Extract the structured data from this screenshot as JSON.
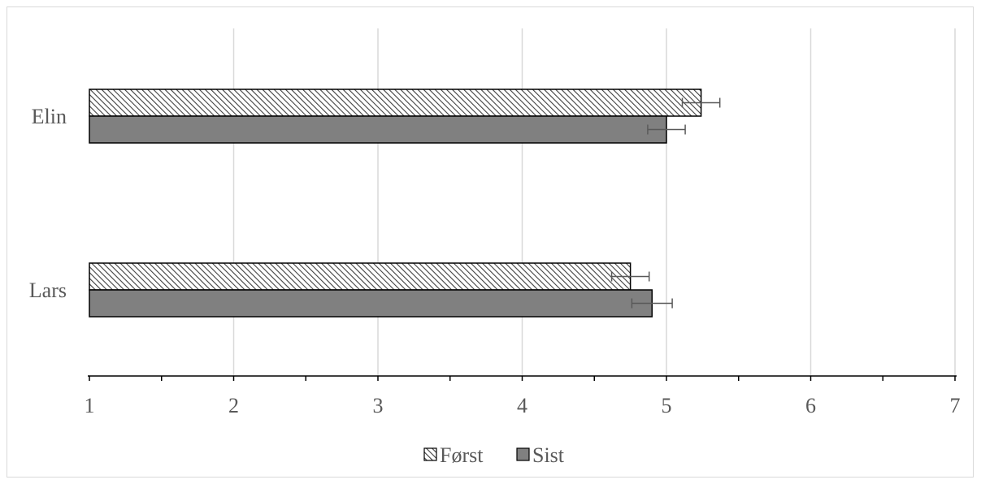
{
  "chart_data": {
    "type": "bar",
    "orientation": "horizontal",
    "categories": [
      "Elin",
      "Lars"
    ],
    "series": [
      {
        "name": "Først",
        "values": [
          5.24,
          4.75
        ],
        "errors": [
          0.13,
          0.13
        ],
        "pattern": "hatch",
        "color": "#ffffff"
      },
      {
        "name": "Sist",
        "values": [
          5.0,
          4.9
        ],
        "errors": [
          0.13,
          0.14
        ],
        "pattern": "solid",
        "color": "#808080"
      }
    ],
    "xlim": [
      1,
      7
    ],
    "xticks": [
      "1",
      "2",
      "3",
      "4",
      "5",
      "6",
      "7"
    ],
    "grid": true,
    "legend_position": "bottom",
    "gridline_color": "#d9d9d9",
    "axis_color": "#000000",
    "text_color": "#595959"
  }
}
